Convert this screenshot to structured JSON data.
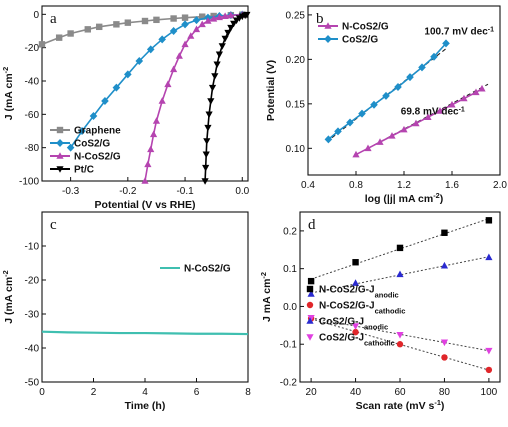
{
  "chart_data": [
    {
      "panel": "a",
      "type": "line",
      "xlabel": "Potential (V vs RHE)",
      "ylabel": "J (mA cm",
      "ylabel_sup": "-2",
      "xlim": [
        -0.35,
        0.01
      ],
      "ylim": [
        -100,
        5
      ],
      "xticks": [
        "-0.3",
        "-0.2",
        "-0.1",
        "0.0"
      ],
      "xtick_values": [
        -0.3,
        -0.2,
        -0.1,
        0.0
      ],
      "yticks": [
        "0",
        "-20",
        "-40",
        "-60",
        "-80",
        "-100"
      ],
      "ytick_values": [
        0,
        -20,
        -40,
        -60,
        -80,
        -100
      ],
      "legend_placement": "bottom-left",
      "series": [
        {
          "name": "Graphene",
          "color": "#8a8a8a",
          "marker": "square",
          "x": [
            -0.35,
            -0.32,
            -0.3,
            -0.27,
            -0.25,
            -0.22,
            -0.2,
            -0.17,
            -0.15,
            -0.12,
            -0.1,
            -0.07,
            -0.05,
            -0.02,
            0.0
          ],
          "y": [
            -18,
            -14,
            -11.5,
            -9,
            -7.5,
            -6,
            -5,
            -4,
            -3.3,
            -2.5,
            -2,
            -1.4,
            -1,
            -0.5,
            -0.2
          ]
        },
        {
          "name": "CoS2/G",
          "color": "#1f8fc9",
          "marker": "diamond",
          "x": [
            -0.3,
            -0.28,
            -0.26,
            -0.24,
            -0.22,
            -0.2,
            -0.18,
            -0.16,
            -0.14,
            -0.12,
            -0.1,
            -0.08,
            -0.06,
            -0.04,
            -0.02,
            0.0
          ],
          "y": [
            -80,
            -70,
            -61,
            -52,
            -44,
            -36,
            -28,
            -21,
            -15,
            -10,
            -6,
            -3.5,
            -2,
            -1,
            -0.5,
            -0.2
          ]
        },
        {
          "name": "N-CoS2/G",
          "color": "#b544b0",
          "marker": "triangle",
          "x": [
            -0.17,
            -0.165,
            -0.16,
            -0.155,
            -0.15,
            -0.14,
            -0.13,
            -0.12,
            -0.11,
            -0.1,
            -0.09,
            -0.08,
            -0.07,
            -0.06,
            -0.05,
            -0.04,
            -0.03,
            -0.02,
            0.0
          ],
          "y": [
            -100,
            -90,
            -81,
            -72,
            -64,
            -52,
            -42,
            -33,
            -25,
            -18,
            -13,
            -9,
            -6,
            -4,
            -2.7,
            -1.8,
            -1.1,
            -0.6,
            -0.2
          ]
        },
        {
          "name": "Pt/C",
          "color": "#000000",
          "marker": "triangle-down",
          "x": [
            -0.065,
            -0.064,
            -0.063,
            -0.062,
            -0.06,
            -0.058,
            -0.055,
            -0.052,
            -0.048,
            -0.044,
            -0.04,
            -0.035,
            -0.03,
            -0.025,
            -0.02,
            -0.015,
            -0.01,
            -0.005,
            0.0,
            0.005,
            0.008
          ],
          "y": [
            -100,
            -92,
            -84,
            -76,
            -68,
            -60,
            -52,
            -44,
            -37,
            -30,
            -24,
            -19,
            -14.5,
            -11,
            -8,
            -5.5,
            -3.6,
            -2.2,
            -1.2,
            -0.6,
            -0.2
          ]
        }
      ]
    },
    {
      "panel": "b",
      "type": "line",
      "xlabel": "log (|j| mA cm",
      "xlabel_sup": "-2",
      "xlabel_end": ")",
      "ylabel": "Potential (V)",
      "xlim": [
        0.4,
        2.0
      ],
      "ylim": [
        0.07,
        0.26
      ],
      "xticks": [
        "0.4",
        "0.8",
        "1.2",
        "1.6",
        "2.0"
      ],
      "xtick_values": [
        0.4,
        0.8,
        1.2,
        1.6,
        2.0
      ],
      "yticks": [
        "0.25",
        "0.20",
        "0.15",
        "0.10"
      ],
      "ytick_values": [
        0.25,
        0.2,
        0.15,
        0.1
      ],
      "legend_placement": "top-left",
      "annotations": [
        {
          "text": "100.7 mV dec",
          "sup": "-1",
          "x": 1.66,
          "y": 0.228
        },
        {
          "text": "69.8 mV dec",
          "sup": "-1",
          "x": 1.44,
          "y": 0.138
        }
      ],
      "series": [
        {
          "name": "N-CoS2/G",
          "color": "#b544b0",
          "marker": "triangle",
          "x": [
            0.8,
            0.9,
            1.0,
            1.1,
            1.2,
            1.3,
            1.4,
            1.5,
            1.6,
            1.7,
            1.8,
            1.85
          ],
          "y": [
            0.093,
            0.1,
            0.107,
            0.114,
            0.121,
            0.128,
            0.135,
            0.142,
            0.149,
            0.156,
            0.163,
            0.167
          ]
        },
        {
          "name": "CoS2/G",
          "color": "#1f8fc9",
          "marker": "diamond",
          "x": [
            0.57,
            0.65,
            0.75,
            0.85,
            0.95,
            1.05,
            1.15,
            1.25,
            1.35,
            1.45,
            1.55
          ],
          "y": [
            0.11,
            0.119,
            0.129,
            0.139,
            0.149,
            0.159,
            0.169,
            0.18,
            0.191,
            0.203,
            0.218
          ]
        }
      ],
      "fit_lines": [
        {
          "x": [
            0.9,
            1.9
          ],
          "y": [
            0.1,
            0.172
          ]
        },
        {
          "x": [
            0.6,
            1.55
          ],
          "y": [
            0.112,
            0.212
          ]
        }
      ]
    },
    {
      "panel": "c",
      "type": "line",
      "xlabel": "Time (h)",
      "ylabel": "J (mA cm",
      "ylabel_sup": "-2",
      "xlim": [
        0,
        8
      ],
      "ylim": [
        -50,
        0
      ],
      "xticks": [
        "0",
        "2",
        "4",
        "6",
        "8"
      ],
      "xtick_values": [
        0,
        2,
        4,
        6,
        8
      ],
      "yticks": [
        "-10",
        "-20",
        "-30",
        "-40",
        "-50"
      ],
      "ytick_values": [
        -10,
        -20,
        -30,
        -40,
        -50
      ],
      "legend_placement": "top-right",
      "series": [
        {
          "name": "N-CoS2/G",
          "color": "#3fbfb0",
          "x": [
            0,
            1,
            2,
            3,
            4,
            5,
            6,
            7,
            8
          ],
          "y": [
            -35.2,
            -35.4,
            -35.5,
            -35.6,
            -35.6,
            -35.7,
            -35.8,
            -35.8,
            -35.9
          ]
        }
      ]
    },
    {
      "panel": "d",
      "type": "scatter",
      "xlabel": "Scan rate (mV s",
      "xlabel_sup": "-1",
      "xlabel_end": ")",
      "ylabel": "J mA cm",
      "ylabel_sup": "-2",
      "xlim": [
        15,
        105
      ],
      "ylim": [
        -0.2,
        0.25
      ],
      "xticks": [
        "20",
        "40",
        "60",
        "80",
        "100"
      ],
      "xtick_values": [
        20,
        40,
        60,
        80,
        100
      ],
      "yticks": [
        "0.2",
        "0.1",
        "0.0",
        "-0.1",
        "-0.2"
      ],
      "ytick_values": [
        0.2,
        0.1,
        0.0,
        -0.1,
        -0.2
      ],
      "legend_placement": "center",
      "series": [
        {
          "name": "N-CoS2/G-J",
          "sub": "anodic",
          "color": "#000000",
          "marker": "square",
          "x": [
            20,
            40,
            60,
            80,
            100
          ],
          "y": [
            0.067,
            0.117,
            0.155,
            0.195,
            0.228
          ]
        },
        {
          "name": "N-CoS2/G-J",
          "sub": "cathodic",
          "color": "#e0262a",
          "marker": "circle",
          "x": [
            20,
            40,
            60,
            80,
            100
          ],
          "y": [
            -0.032,
            -0.068,
            -0.1,
            -0.135,
            -0.168
          ]
        },
        {
          "name": "CoS2/G-J",
          "sub": "anodic",
          "color": "#2a2ad0",
          "marker": "triangle",
          "x": [
            20,
            40,
            60,
            80,
            100
          ],
          "y": [
            0.033,
            0.062,
            0.085,
            0.108,
            0.13
          ]
        },
        {
          "name": "CoS2/G-J",
          "sub": "cathodic",
          "color": "#e040e0",
          "marker": "triangle-down",
          "x": [
            20,
            40,
            60,
            80,
            100
          ],
          "y": [
            -0.03,
            -0.052,
            -0.075,
            -0.095,
            -0.117
          ]
        }
      ]
    }
  ]
}
